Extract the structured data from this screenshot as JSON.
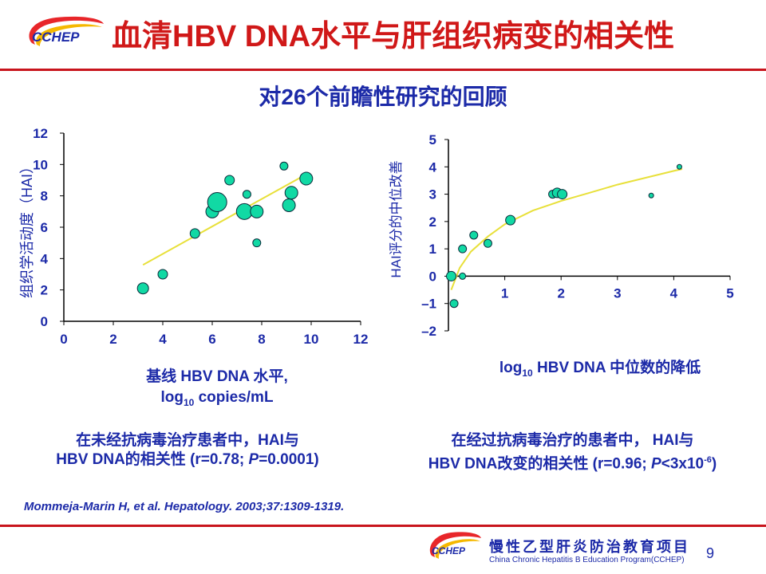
{
  "header": {
    "logo_text": "CCHEP",
    "title": "血清HBV DNA水平与肝组织病变的相关性",
    "subtitle": "对26个前瞻性研究的回顾"
  },
  "chart_data": [
    {
      "type": "scatter",
      "xlabel_line1": "基线 HBV DNA 水平,",
      "xlabel_line2_pre": "log",
      "xlabel_line2_sub": "10",
      "xlabel_line2_post": " copies/mL",
      "ylabel": "组织学活动度（HAI）",
      "xlim": [
        0,
        12
      ],
      "ylim": [
        0,
        12
      ],
      "xticks": [
        0,
        2,
        4,
        6,
        8,
        10,
        12
      ],
      "yticks": [
        0,
        2,
        4,
        6,
        8,
        10,
        12
      ],
      "trendline": [
        [
          3.2,
          3.6
        ],
        [
          9.6,
          9.2
        ]
      ],
      "points": [
        {
          "x": 3.2,
          "y": 2.1,
          "size": 7
        },
        {
          "x": 4.0,
          "y": 3.0,
          "size": 6
        },
        {
          "x": 5.3,
          "y": 5.6,
          "size": 6
        },
        {
          "x": 6.0,
          "y": 7.0,
          "size": 8
        },
        {
          "x": 6.2,
          "y": 7.6,
          "size": 12
        },
        {
          "x": 6.7,
          "y": 9.0,
          "size": 6
        },
        {
          "x": 7.3,
          "y": 7.0,
          "size": 10
        },
        {
          "x": 7.4,
          "y": 8.1,
          "size": 5
        },
        {
          "x": 7.8,
          "y": 5.0,
          "size": 5
        },
        {
          "x": 7.8,
          "y": 7.0,
          "size": 8
        },
        {
          "x": 8.9,
          "y": 9.9,
          "size": 5
        },
        {
          "x": 9.1,
          "y": 7.4,
          "size": 8
        },
        {
          "x": 9.2,
          "y": 8.2,
          "size": 8
        },
        {
          "x": 9.8,
          "y": 9.1,
          "size": 8
        }
      ]
    },
    {
      "type": "scatter",
      "xlabel_pre": "log",
      "xlabel_sub": "10",
      "xlabel_post": " HBV DNA 中位数的降低",
      "ylabel": "HAI评分的中位改善",
      "xlim": [
        0,
        5
      ],
      "ylim": [
        -2,
        5
      ],
      "xticks": [
        1,
        2,
        3,
        4,
        5
      ],
      "yticks": [
        -2,
        -1,
        0,
        1,
        2,
        3,
        4,
        5
      ],
      "ytick_labels": [
        "–2",
        "–1",
        "0",
        "1",
        "2",
        "3",
        "4",
        "5"
      ],
      "trend_curve": [
        [
          0.05,
          -0.5
        ],
        [
          0.2,
          0.3
        ],
        [
          0.4,
          0.9
        ],
        [
          0.7,
          1.45
        ],
        [
          1.0,
          1.9
        ],
        [
          1.5,
          2.4
        ],
        [
          2.0,
          2.75
        ],
        [
          2.5,
          3.05
        ],
        [
          3.0,
          3.35
        ],
        [
          3.5,
          3.6
        ],
        [
          4.0,
          3.85
        ],
        [
          4.15,
          3.92
        ]
      ],
      "points": [
        {
          "x": 0.05,
          "y": 0.0,
          "size": 6
        },
        {
          "x": 0.1,
          "y": -1.0,
          "size": 5
        },
        {
          "x": 0.25,
          "y": 0.0,
          "size": 4
        },
        {
          "x": 0.25,
          "y": 1.0,
          "size": 5
        },
        {
          "x": 0.45,
          "y": 1.5,
          "size": 5
        },
        {
          "x": 0.7,
          "y": 1.2,
          "size": 5
        },
        {
          "x": 1.1,
          "y": 2.05,
          "size": 6
        },
        {
          "x": 1.85,
          "y": 3.0,
          "size": 5
        },
        {
          "x": 1.93,
          "y": 3.05,
          "size": 6
        },
        {
          "x": 2.02,
          "y": 3.0,
          "size": 6
        },
        {
          "x": 3.6,
          "y": 2.95,
          "size": 3
        },
        {
          "x": 4.1,
          "y": 4.0,
          "size": 3
        }
      ]
    }
  ],
  "captions": {
    "left_line1": "在未经抗病毒治疗患者中，HAI与",
    "left_line2_pre": "HBV DNA的相关性 (r=0.78; ",
    "left_line2_italic": "P",
    "left_line2_post": "=0.0001)",
    "right_line1": "在经过抗病毒治疗的患者中， HAI与",
    "right_line2_pre": "HBV DNA改变的相关性 (r=0.96; ",
    "right_line2_italic": "P",
    "right_line2_mid": "<3x10",
    "right_line2_sup": "-6",
    "right_line2_post": ")"
  },
  "reference": "Mommeja-Marin H, et al. Hepatology. 2003;37:1309-1319.",
  "footer": {
    "logo_text": "CCHEP",
    "project_cn": "慢性乙型肝炎防治教育项目",
    "project_en": "China Chronic Hepatitis B Education Program(CCHEP)",
    "page_number": "9"
  },
  "colors": {
    "title_red": "#d01818",
    "navy": "#1c2aa8",
    "point_fill": "#11d9a4",
    "trend_yellow": "#e8e03a",
    "rule_red": "#c8141c"
  }
}
